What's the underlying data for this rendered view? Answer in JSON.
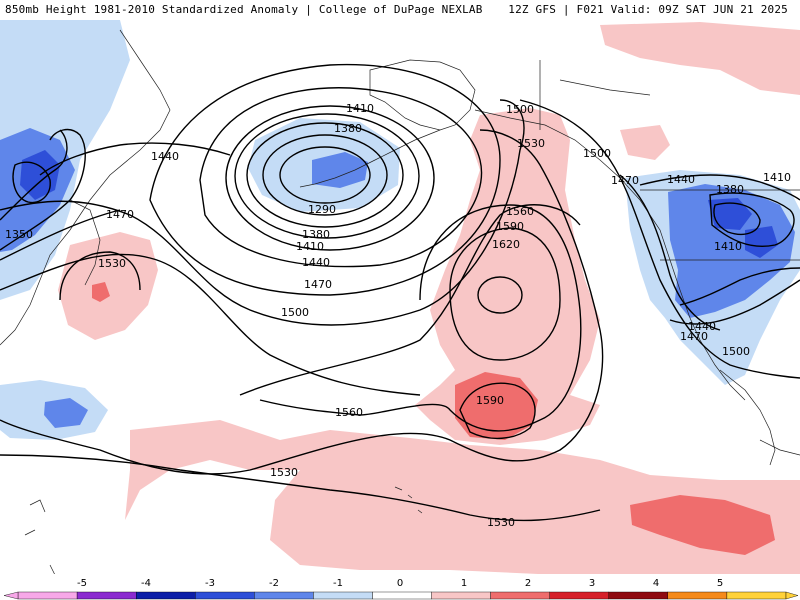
{
  "header": {
    "left": "850mb Height 1981-2010 Standardized Anomaly | College of DuPage NEXLAB",
    "right": "12Z GFS | F021 Valid: 09Z SAT JUN 21 2025"
  },
  "colors": {
    "pos1": "#f8c6c6",
    "pos2": "#ef6d6d",
    "neg1": "#c4dcf6",
    "neg2": "#5f86ea",
    "neg3": "#2e4fd8"
  },
  "contour_labels": [
    "1290",
    "1350",
    "1380",
    "1410",
    "1440",
    "1470",
    "1500",
    "1530",
    "1560",
    "1590",
    "1620"
  ],
  "colorbar": {
    "ticks": [
      "-5",
      "-4",
      "-3",
      "-2",
      "-1",
      "0",
      "1",
      "2",
      "3",
      "4",
      "5"
    ],
    "colors": [
      "#f7a8e8",
      "#8b2bd0",
      "#0d1fa8",
      "#2e4fd8",
      "#5f86ea",
      "#c4dcf6",
      "#ffffff",
      "#f8c6c6",
      "#ef6d6d",
      "#d6202a",
      "#8f0a10",
      "#f58a1a",
      "#ffd23a"
    ]
  }
}
